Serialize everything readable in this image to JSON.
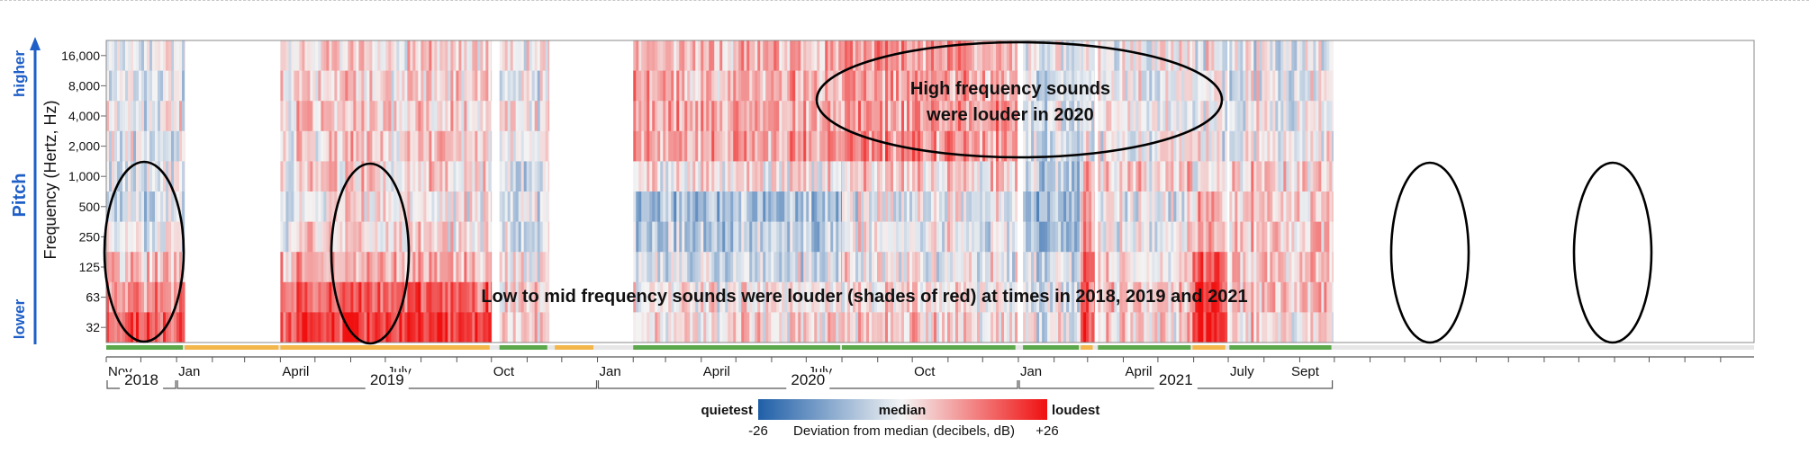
{
  "chart_data": {
    "type": "heatmap",
    "title": "",
    "ylabel": "Frequency (Hertz, Hz)",
    "pitch_axis": {
      "label": "Pitch",
      "higher": "higher",
      "lower": "lower"
    },
    "y_ticks": [
      "16,000",
      "8,000",
      "4,000",
      "2,000",
      "1,000",
      "500",
      "250",
      "125",
      "63",
      "32"
    ],
    "x_range": [
      "2017-11-01",
      "2021-09-30"
    ],
    "month_ticks": [
      {
        "label": "Nov",
        "date": "2017-11-01"
      },
      {
        "label": "Jan",
        "date": "2018-01-01"
      },
      {
        "label": "April",
        "date": "2018-04-01"
      },
      {
        "label": "July",
        "date": "2018-07-01"
      },
      {
        "label": "Oct",
        "date": "2018-10-01"
      },
      {
        "label": "Jan",
        "date": "2019-01-01"
      },
      {
        "label": "April",
        "date": "2019-04-01"
      },
      {
        "label": "July",
        "date": "2019-07-01"
      },
      {
        "label": "Oct",
        "date": "2019-10-01"
      },
      {
        "label": "Jan",
        "date": "2020-01-01"
      },
      {
        "label": "April",
        "date": "2020-04-01"
      },
      {
        "label": "July",
        "date": "2020-07-01"
      },
      {
        "label": "Sept",
        "date": "2020-09-01"
      }
    ],
    "year_labels": [
      {
        "label": "2018",
        "start": "2017-11-01",
        "end": "2018-01-01"
      },
      {
        "label": "2019",
        "start": "2018-01-01",
        "end": "2019-01-01"
      },
      {
        "label": "2020",
        "start": "2019-01-01",
        "end": "2020-01-01"
      },
      {
        "label": "2021",
        "start": "2020-01-01",
        "end": "2020-09-30"
      }
    ],
    "color_scale": {
      "min": -26,
      "max": 26,
      "min_label": "-26",
      "max_label": "+26",
      "low_label": "quietest",
      "mid_label": "median",
      "high_label": "loudest",
      "caption": "Deviation from median (decibels, dB)",
      "low_color": "#1f5fa8",
      "mid_color": "#f4f4f4",
      "high_color": "#f01010"
    },
    "annotations": [
      {
        "text_lines": [
          "High frequency sounds",
          "were louder in 2020"
        ]
      },
      {
        "text_lines": [
          "Low to mid frequency sounds were louder (shades of red) at times in 2018, 2019 and 2021"
        ]
      }
    ],
    "data_periods": [
      {
        "start": "2017-11-01",
        "end": "2018-01-08",
        "status": "green",
        "bands": [
          -2,
          -3,
          -1,
          -2,
          -4,
          -5,
          -2,
          6,
          12,
          16
        ]
      },
      {
        "start": "2018-01-08",
        "end": "2018-04-01",
        "status": "orange",
        "bands": null
      },
      {
        "start": "2018-04-01",
        "end": "2018-10-01",
        "status": "orange",
        "bands": [
          3,
          3,
          4,
          4,
          3,
          1,
          2,
          8,
          16,
          21
        ]
      },
      {
        "start": "2018-10-08",
        "end": "2018-11-20",
        "status": "green",
        "bands": [
          0,
          -1,
          0,
          0,
          -4,
          -6,
          -4,
          0,
          2,
          4
        ]
      },
      {
        "start": "2018-11-25",
        "end": "2018-12-30",
        "status": "orange",
        "bands": null
      },
      {
        "start": "2019-02-01",
        "end": "2019-08-01",
        "status": "green",
        "bands": [
          8,
          8,
          9,
          9,
          2,
          -9,
          -7,
          -3,
          1,
          3
        ]
      },
      {
        "start": "2019-08-01",
        "end": "2019-12-31",
        "status": "green",
        "bands": [
          10,
          10,
          11,
          11,
          3,
          -2,
          -1,
          0,
          2,
          4
        ]
      },
      {
        "start": "2020-01-05",
        "end": "2020-02-24",
        "status": "green",
        "bands": [
          -2,
          -3,
          -3,
          -3,
          -6,
          -9,
          -7,
          -3,
          -2,
          -1
        ]
      },
      {
        "start": "2020-02-24",
        "end": "2020-03-07",
        "status": "orange",
        "bands": [
          -1,
          -1,
          -1,
          -1,
          5,
          9,
          12,
          16,
          18,
          17
        ]
      },
      {
        "start": "2020-03-10",
        "end": "2020-05-31",
        "status": "green",
        "bands": [
          1,
          0,
          0,
          0,
          4,
          -2,
          -1,
          2,
          6,
          4
        ]
      },
      {
        "start": "2020-05-31",
        "end": "2020-06-30",
        "status": "orange",
        "bands": [
          0,
          0,
          0,
          0,
          3,
          6,
          10,
          18,
          22,
          24
        ]
      },
      {
        "start": "2020-07-02",
        "end": "2020-09-30",
        "status": "green",
        "bands": [
          -1,
          -1,
          -1,
          -1,
          5,
          4,
          6,
          7,
          7,
          4
        ]
      }
    ],
    "coverage_colors": {
      "green": "#5aa84a",
      "orange": "#f2b64a",
      "none": "#e6e6e6"
    },
    "accent_color": "#1f5fc8"
  }
}
